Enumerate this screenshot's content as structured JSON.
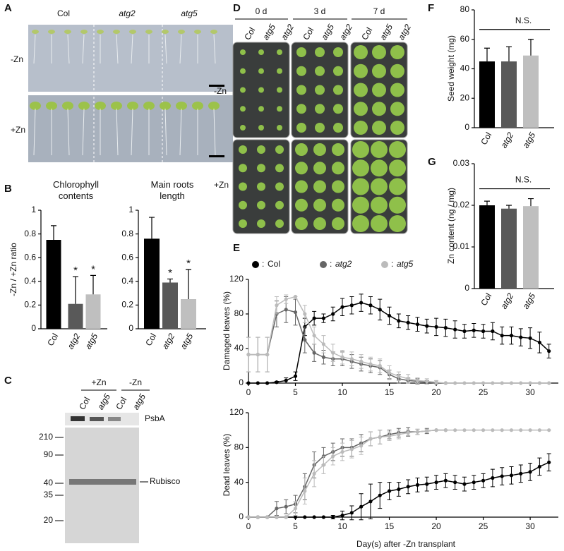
{
  "panel_labels": [
    "A",
    "B",
    "C",
    "D",
    "E",
    "F",
    "G"
  ],
  "panel_a": {
    "columns": [
      "Col",
      "atg2",
      "atg5"
    ],
    "rows": [
      "-Zn",
      "+Zn"
    ]
  },
  "panel_c": {
    "groups": [
      "+Zn",
      "-Zn"
    ],
    "lanes": [
      "Col",
      "atg5",
      "Col",
      "atg5"
    ],
    "bands": [
      "PsbA",
      "Rubisco"
    ],
    "markers": [
      "210",
      "90",
      "40",
      "35",
      "20"
    ]
  },
  "panel_d": {
    "timepoints": [
      "0 d",
      "3 d",
      "7 d"
    ],
    "genotypes": [
      "Col",
      "atg5",
      "atg2"
    ],
    "rows": [
      "-Zn",
      "+Zn"
    ]
  },
  "chart_data": [
    {
      "type": "bar",
      "title": "Chlorophyll contents",
      "ylabel": "-Zn / +Zn ratio",
      "categories": [
        "Col",
        "atg2",
        "atg5"
      ],
      "values": [
        0.75,
        0.21,
        0.29
      ],
      "errors": [
        0.12,
        0.23,
        0.16
      ],
      "colors": [
        "#000000",
        "#595959",
        "#bfbfbf"
      ],
      "ylim": [
        0,
        1
      ],
      "yticks": [
        0,
        0.2,
        0.4,
        0.6,
        0.8,
        1
      ],
      "annotations": [
        {
          "category": "atg2",
          "text": "*"
        },
        {
          "category": "atg5",
          "text": "*"
        }
      ]
    },
    {
      "type": "bar",
      "title": "Main roots length",
      "categories": [
        "Col",
        "atg2",
        "atg5"
      ],
      "values": [
        0.76,
        0.39,
        0.25
      ],
      "errors": [
        0.18,
        0.03,
        0.25
      ],
      "colors": [
        "#000000",
        "#595959",
        "#bfbfbf"
      ],
      "ylim": [
        0,
        1
      ],
      "yticks": [
        0,
        0.2,
        0.4,
        0.6,
        0.8,
        1
      ],
      "annotations": [
        {
          "category": "atg2",
          "text": "*"
        },
        {
          "category": "atg5",
          "text": "*"
        }
      ]
    },
    {
      "type": "line",
      "ylabel": "Damaged leaves (%)",
      "legend": true,
      "legend_separator": ":",
      "xlim": [
        0,
        33
      ],
      "xticks": [
        0,
        5,
        10,
        15,
        20,
        25,
        30
      ],
      "ylim": [
        0,
        120
      ],
      "yticks": [
        0,
        40,
        80,
        120
      ],
      "series": [
        {
          "name": "Col",
          "color": "#000000",
          "x": [
            0,
            1,
            2,
            3,
            4,
            5,
            6,
            7,
            8,
            9,
            10,
            11,
            12,
            13,
            14,
            15,
            16,
            17,
            18,
            19,
            20,
            21,
            22,
            23,
            24,
            25,
            26,
            27,
            28,
            29,
            30,
            31,
            32
          ],
          "values": [
            0,
            0,
            0,
            1,
            3,
            8,
            65,
            75,
            75,
            80,
            88,
            90,
            93,
            90,
            85,
            78,
            72,
            70,
            68,
            66,
            65,
            64,
            62,
            60,
            61,
            60,
            60,
            55,
            55,
            53,
            52,
            47,
            37
          ],
          "errors": [
            0,
            0,
            0,
            1,
            3,
            5,
            10,
            8,
            5,
            8,
            10,
            10,
            10,
            10,
            12,
            10,
            8,
            8,
            8,
            8,
            10,
            10,
            10,
            8,
            8,
            8,
            10,
            10,
            10,
            10,
            12,
            12,
            8
          ]
        },
        {
          "name": "atg2",
          "color": "#666666",
          "x": [
            0,
            1,
            2,
            3,
            4,
            5,
            6,
            7,
            8,
            9,
            10,
            11,
            12,
            13,
            14,
            15,
            16,
            17,
            18,
            19,
            20,
            21
          ],
          "values": [
            33,
            33,
            33,
            80,
            85,
            82,
            50,
            35,
            30,
            28,
            28,
            25,
            22,
            20,
            18,
            10,
            5,
            3,
            2,
            1,
            0,
            0
          ],
          "errors": [
            20,
            20,
            20,
            15,
            15,
            15,
            15,
            10,
            8,
            8,
            8,
            8,
            8,
            8,
            8,
            5,
            5,
            3,
            3,
            2,
            0,
            0
          ]
        },
        {
          "name": "atg5",
          "color": "#bbbbbb",
          "x": [
            0,
            1,
            2,
            3,
            4,
            5,
            6,
            7,
            8,
            9,
            10,
            11,
            12,
            13,
            14,
            15,
            16,
            17,
            18,
            19,
            20,
            21,
            22,
            23,
            24,
            25,
            26,
            27,
            28,
            29,
            30,
            31,
            32
          ],
          "values": [
            33,
            33,
            33,
            90,
            97,
            100,
            80,
            55,
            45,
            35,
            30,
            28,
            25,
            22,
            20,
            12,
            8,
            5,
            3,
            2,
            1,
            0,
            0,
            0,
            0,
            0,
            0,
            0,
            0,
            0,
            0,
            0,
            0
          ],
          "errors": [
            20,
            20,
            20,
            10,
            5,
            0,
            10,
            10,
            10,
            10,
            8,
            8,
            8,
            8,
            8,
            8,
            5,
            5,
            3,
            3,
            2,
            0,
            0,
            0,
            0,
            0,
            0,
            0,
            0,
            0,
            0,
            0,
            0
          ]
        }
      ]
    },
    {
      "type": "line",
      "ylabel": "Dead leaves (%)",
      "xlabel": "Day(s) after -Zn transplant",
      "xlim": [
        0,
        33
      ],
      "xticks": [
        0,
        5,
        10,
        15,
        20,
        25,
        30
      ],
      "ylim": [
        0,
        120
      ],
      "yticks": [
        0,
        40,
        80,
        120
      ],
      "series": [
        {
          "name": "Col",
          "color": "#000000",
          "x": [
            0,
            1,
            2,
            3,
            4,
            5,
            6,
            7,
            8,
            9,
            10,
            11,
            12,
            13,
            14,
            15,
            16,
            17,
            18,
            19,
            20,
            21,
            22,
            23,
            24,
            25,
            26,
            27,
            28,
            29,
            30,
            31,
            32
          ],
          "values": [
            0,
            0,
            0,
            0,
            0,
            0,
            0,
            0,
            0,
            0,
            2,
            5,
            12,
            18,
            25,
            30,
            32,
            35,
            37,
            38,
            40,
            42,
            40,
            38,
            40,
            42,
            45,
            47,
            48,
            50,
            52,
            58,
            63
          ],
          "errors": [
            0,
            0,
            0,
            0,
            0,
            0,
            0,
            0,
            0,
            2,
            5,
            8,
            15,
            20,
            15,
            10,
            8,
            8,
            8,
            8,
            8,
            8,
            8,
            8,
            8,
            8,
            10,
            10,
            10,
            10,
            10,
            10,
            10
          ]
        },
        {
          "name": "atg2",
          "color": "#666666",
          "x": [
            0,
            1,
            2,
            3,
            4,
            5,
            6,
            7,
            8,
            9,
            10,
            11,
            12,
            13,
            14,
            15,
            16,
            17,
            18,
            19,
            20,
            21
          ],
          "values": [
            0,
            0,
            0,
            10,
            12,
            15,
            35,
            60,
            70,
            75,
            80,
            80,
            85,
            90,
            92,
            95,
            97,
            98,
            98,
            99,
            100,
            100
          ],
          "errors": [
            0,
            0,
            0,
            8,
            8,
            10,
            15,
            15,
            10,
            10,
            10,
            10,
            10,
            8,
            8,
            5,
            5,
            5,
            3,
            3,
            0,
            0
          ]
        },
        {
          "name": "atg5",
          "color": "#bbbbbb",
          "x": [
            0,
            1,
            2,
            3,
            4,
            5,
            6,
            7,
            8,
            9,
            10,
            11,
            12,
            13,
            14,
            15,
            16,
            17,
            18,
            19,
            20,
            21,
            22,
            23,
            24,
            25,
            26,
            27,
            28,
            29,
            30,
            31,
            32
          ],
          "values": [
            0,
            0,
            0,
            0,
            0,
            10,
            30,
            50,
            60,
            70,
            75,
            78,
            82,
            90,
            92,
            93,
            95,
            97,
            98,
            99,
            100,
            100,
            100,
            100,
            100,
            100,
            100,
            100,
            100,
            100,
            100,
            100,
            100
          ],
          "errors": [
            0,
            0,
            0,
            0,
            0,
            8,
            15,
            15,
            10,
            10,
            10,
            10,
            10,
            8,
            8,
            5,
            5,
            3,
            3,
            2,
            0,
            0,
            0,
            0,
            0,
            0,
            0,
            0,
            0,
            0,
            0,
            0,
            0
          ]
        }
      ]
    },
    {
      "type": "bar",
      "ylabel": "Seed weight (mg)",
      "categories": [
        "Col",
        "atg2",
        "atg5"
      ],
      "values": [
        45,
        45,
        49
      ],
      "errors": [
        9,
        10,
        11
      ],
      "colors": [
        "#000000",
        "#595959",
        "#bfbfbf"
      ],
      "ylim": [
        0,
        80
      ],
      "yticks": [
        0,
        20,
        40,
        60,
        80
      ],
      "annotations": [
        {
          "text": "N.S."
        }
      ]
    },
    {
      "type": "bar",
      "ylabel": "Zn content (ng / mg)",
      "categories": [
        "Col",
        "atg2",
        "atg5"
      ],
      "values": [
        0.02,
        0.0192,
        0.0198
      ],
      "errors": [
        0.001,
        0.0008,
        0.0018
      ],
      "colors": [
        "#000000",
        "#595959",
        "#bfbfbf"
      ],
      "ylim": [
        0,
        0.03
      ],
      "yticks": [
        0,
        0.01,
        0.02,
        0.03
      ],
      "annotations": [
        {
          "text": "N.S."
        }
      ]
    }
  ]
}
